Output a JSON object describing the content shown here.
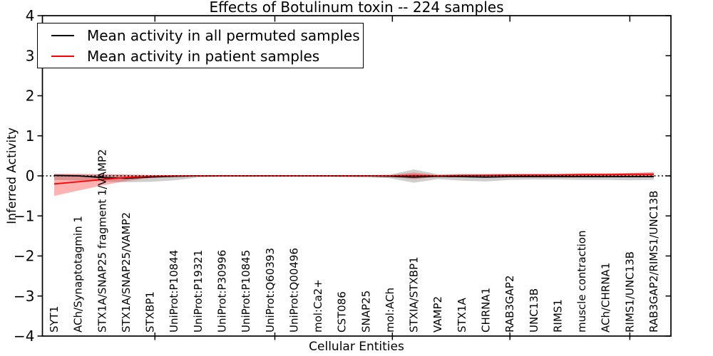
{
  "title": "Effects of Botulinum toxin -- 224 samples",
  "legend": {
    "items": [
      {
        "label": "Mean activity in all permuted samples",
        "color": "#000000"
      },
      {
        "label": "Mean activity in patient samples",
        "color": "#ff0000"
      }
    ]
  },
  "chart_data": {
    "type": "line",
    "title": "Effects of Botulinum toxin -- 224 samples",
    "xlabel": "Cellular Entities",
    "ylabel": "Inferred Activity",
    "ylim": [
      -4,
      4
    ],
    "ytick_labels": [
      "4",
      "3",
      "2",
      "1",
      "0",
      "−1",
      "−2",
      "−3",
      "−4"
    ],
    "ytick_values": [
      4,
      3,
      2,
      1,
      0,
      -1,
      -2,
      -3,
      -4
    ],
    "x_major_ticks_index": [
      4.2,
      9.2,
      14.1,
      19.0,
      24.0
    ],
    "grid": false,
    "legend_position": "upper left",
    "zero_line": {
      "show": true,
      "style": "dotted",
      "color": "#000000",
      "y": 0
    },
    "categories": [
      "SYT1",
      "ACh/Synaptotagmin 1",
      "STX1A/SNAP25 fragment 1/VAMP2",
      "STX1A/SNAP25/VAMP2",
      "STXBP1",
      "UniProt:P10844",
      "UniProt:P19321",
      "UniProt:P30996",
      "UniProt:P10845",
      "UniProt:Q60393",
      "UniProt:Q00496",
      "mol:Ca2+",
      "CST086",
      "SNAP25",
      "mol:ACh",
      "STXIA/STXBP1",
      "VAMP2",
      "STX1A",
      "CHRNA1",
      "RAB3GAP2",
      "UNC13B",
      "RIMS1",
      "muscle contraction",
      "ACh/CHRNA1",
      "RIMS1/UNC13B",
      "RAB3GAP2/RIMS1/UNC13B"
    ],
    "series": [
      {
        "name": "Mean activity in all permuted samples",
        "color": "#000000",
        "band_color": "rgba(102,102,102,0.32)",
        "values": [
          0.01,
          0.0,
          -0.04,
          -0.06,
          -0.03,
          -0.01,
          0.0,
          0.0,
          0.0,
          0.0,
          0.0,
          0.0,
          0.0,
          0.0,
          -0.01,
          -0.03,
          -0.01,
          -0.02,
          -0.03,
          -0.02,
          -0.02,
          -0.02,
          -0.02,
          -0.02,
          -0.02,
          -0.02
        ],
        "band_upper": [
          0.04,
          0.04,
          0.03,
          0.03,
          0.02,
          0.02,
          0.01,
          0.01,
          0.01,
          0.01,
          0.01,
          0.01,
          0.02,
          0.02,
          0.03,
          0.16,
          0.04,
          0.05,
          0.05,
          0.05,
          0.05,
          0.05,
          0.06,
          0.06,
          0.07,
          0.08
        ],
        "band_lower": [
          -0.1,
          -0.12,
          -0.14,
          -0.16,
          -0.15,
          -0.11,
          -0.04,
          -0.02,
          -0.02,
          -0.02,
          -0.02,
          -0.02,
          -0.03,
          -0.04,
          -0.06,
          -0.17,
          -0.08,
          -0.12,
          -0.14,
          -0.1,
          -0.09,
          -0.09,
          -0.1,
          -0.1,
          -0.11,
          -0.1
        ]
      },
      {
        "name": "Mean activity in patient samples",
        "color": "#ff0000",
        "band_color": "rgba(255,0,0,0.30)",
        "values": [
          -0.2,
          -0.15,
          -0.09,
          -0.04,
          -0.01,
          0.0,
          0.0,
          0.0,
          0.0,
          0.0,
          0.0,
          0.0,
          0.0,
          0.0,
          0.0,
          0.01,
          0.0,
          0.01,
          0.01,
          0.02,
          0.02,
          0.02,
          0.03,
          0.03,
          0.04,
          0.04
        ],
        "band_upper": [
          0.05,
          0.05,
          0.04,
          0.03,
          0.02,
          0.01,
          0.01,
          0.01,
          0.01,
          0.01,
          0.01,
          0.01,
          0.01,
          0.01,
          0.02,
          0.08,
          0.02,
          0.03,
          0.04,
          0.04,
          0.05,
          0.05,
          0.06,
          0.06,
          0.07,
          0.09
        ],
        "band_lower": [
          -0.5,
          -0.37,
          -0.24,
          -0.13,
          -0.05,
          -0.02,
          -0.01,
          -0.01,
          -0.01,
          -0.01,
          -0.01,
          -0.01,
          -0.01,
          -0.01,
          -0.02,
          -0.08,
          -0.02,
          -0.01,
          -0.01,
          -0.01,
          -0.01,
          -0.01,
          -0.01,
          -0.01,
          -0.01,
          -0.02
        ]
      }
    ]
  }
}
